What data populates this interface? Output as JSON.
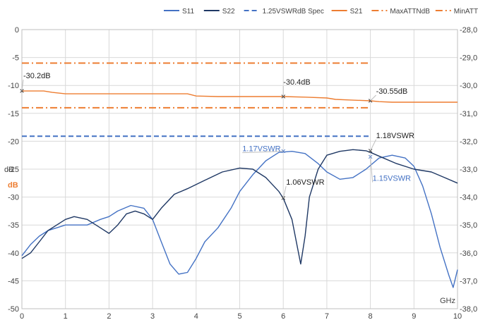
{
  "chart_data": {
    "type": "line",
    "title": "",
    "xunit_label": "GHz",
    "ylabel_primary": "dB",
    "ylabel_secondary": "dB",
    "x_range": [
      0,
      10
    ],
    "x_ticks": [
      0,
      1,
      2,
      3,
      4,
      5,
      6,
      7,
      8,
      9,
      10
    ],
    "y_range": [
      -50,
      0
    ],
    "y_ticks": [
      0,
      -5,
      -10,
      -15,
      -20,
      -25,
      -30,
      -35,
      -40,
      -45,
      -50
    ],
    "y2_range": [
      -38,
      -28
    ],
    "y2_ticks": [
      "-28,0",
      "-29,0",
      "-30,0",
      "-31,0",
      "-32,0",
      "-33,0",
      "-34,0",
      "-35,0",
      "-36,0",
      "-37,0",
      "-38,0"
    ],
    "grid": true,
    "legend_position": "top",
    "legend": [
      "S11",
      "S22",
      "1.25VSWRdB Spec",
      "S21",
      "MaxATTNdB",
      "MinATTNdB"
    ],
    "colors": {
      "S11": "#4472c4",
      "S22": "#1f3864",
      "spec": "#4472c4",
      "S21": "#ed7d31",
      "MaxATTN": "#ed7d31",
      "MinATTN": "#ed7d31"
    },
    "series": [
      {
        "name": "S11",
        "axis": "primary",
        "style": "solid",
        "x": [
          0,
          0.2,
          0.4,
          0.6,
          0.8,
          1.0,
          1.2,
          1.5,
          1.8,
          2.0,
          2.2,
          2.5,
          2.8,
          3.0,
          3.2,
          3.4,
          3.6,
          3.8,
          4.0,
          4.2,
          4.5,
          4.8,
          5.0,
          5.3,
          5.6,
          5.9,
          6.2,
          6.5,
          6.8,
          7.0,
          7.3,
          7.6,
          7.9,
          8.2,
          8.5,
          8.8,
          9.0,
          9.2,
          9.4,
          9.6,
          9.8,
          9.9,
          10.0
        ],
        "y": [
          -40.5,
          -38.5,
          -37,
          -36,
          -35.5,
          -35,
          -35,
          -35,
          -34,
          -33.5,
          -32.5,
          -31.5,
          -32,
          -34,
          -38,
          -42,
          -43.8,
          -43.5,
          -41,
          -38,
          -35.5,
          -32,
          -29,
          -26,
          -23.5,
          -22,
          -21.8,
          -22.2,
          -24,
          -25.5,
          -26.8,
          -26.5,
          -25,
          -23,
          -22.5,
          -23,
          -24.5,
          -28,
          -33,
          -39,
          -44,
          -46.2,
          -43
        ]
      },
      {
        "name": "S22",
        "axis": "primary",
        "style": "solid",
        "x": [
          0,
          0.2,
          0.4,
          0.6,
          0.8,
          1.0,
          1.2,
          1.5,
          1.8,
          2.0,
          2.2,
          2.4,
          2.6,
          2.8,
          3.0,
          3.2,
          3.5,
          3.8,
          4.2,
          4.6,
          5.0,
          5.3,
          5.6,
          5.9,
          6.0,
          6.2,
          6.3,
          6.4,
          6.5,
          6.6,
          6.8,
          7.0,
          7.3,
          7.6,
          7.9,
          8.0,
          8.3,
          8.6,
          9.0,
          9.4,
          9.7,
          10.0
        ],
        "y": [
          -41,
          -40,
          -38,
          -36,
          -35,
          -34,
          -33.5,
          -34,
          -35.5,
          -36.5,
          -35,
          -33,
          -32.5,
          -33,
          -34,
          -32,
          -29.5,
          -28.5,
          -27,
          -25.5,
          -24.8,
          -25,
          -26.5,
          -29,
          -30.2,
          -34,
          -38,
          -42,
          -37,
          -30,
          -25,
          -22.5,
          -21.8,
          -21.5,
          -21.7,
          -22,
          -23,
          -24,
          -25,
          -25.5,
          -26.5,
          -27.5
        ]
      },
      {
        "name": "1.25VSWRdB Spec",
        "axis": "primary",
        "style": "dash",
        "x": [
          0,
          8
        ],
        "y": [
          -19.1,
          -19.1
        ]
      },
      {
        "name": "S21",
        "axis": "secondary",
        "style": "solid",
        "x": [
          0,
          0.5,
          0.7,
          1,
          1.5,
          2,
          2.5,
          3,
          3.5,
          3.8,
          4,
          4.5,
          5,
          5.5,
          6,
          6.5,
          7,
          7.2,
          7.5,
          8,
          8.2,
          8.5,
          9,
          9.5,
          10
        ],
        "y": [
          -30.2,
          -30.2,
          -30.25,
          -30.3,
          -30.3,
          -30.3,
          -30.3,
          -30.3,
          -30.3,
          -30.3,
          -30.38,
          -30.4,
          -30.4,
          -30.4,
          -30.4,
          -30.42,
          -30.45,
          -30.5,
          -30.52,
          -30.55,
          -30.58,
          -30.6,
          -30.6,
          -30.6,
          -30.6
        ]
      },
      {
        "name": "MaxATTNdB",
        "axis": "secondary",
        "style": "dashdot",
        "x": [
          0,
          8
        ],
        "y": [
          -30.8,
          -30.8
        ]
      },
      {
        "name": "MinATTNdB",
        "axis": "secondary",
        "style": "dashdot",
        "x": [
          0,
          8
        ],
        "y": [
          -29.2,
          -29.2
        ]
      }
    ],
    "annotations": [
      {
        "text": "-30.2dB",
        "x": 0,
        "y": -30.2,
        "axis": "secondary",
        "color": "#222222",
        "dx": 2,
        "dy": -18
      },
      {
        "text": "-30.4dB",
        "x": 6,
        "y": -30.4,
        "axis": "secondary",
        "color": "#222222",
        "dx": 0,
        "dy": -17
      },
      {
        "text": "-30.55dB",
        "x": 8,
        "y": -30.55,
        "axis": "secondary",
        "color": "#222222",
        "dx": 8,
        "dy": -10
      },
      {
        "text": "1.17VSWR",
        "x": 6,
        "y": -21.8,
        "axis": "primary",
        "color": "#4472c4",
        "dx": -58,
        "dy": 0
      },
      {
        "text": "1.18VSWR",
        "x": 8,
        "y": -21.7,
        "axis": "primary",
        "color": "#222222",
        "dx": 8,
        "dy": -18
      },
      {
        "text": "1.06VSWR",
        "x": 6,
        "y": -30.2,
        "axis": "primary",
        "color": "#222222",
        "dx": 4,
        "dy": -19
      },
      {
        "text": "1.15VSWR",
        "x": 8,
        "y": -22.8,
        "axis": "primary",
        "color": "#4472c4",
        "dx": 3,
        "dy": 34
      }
    ]
  }
}
